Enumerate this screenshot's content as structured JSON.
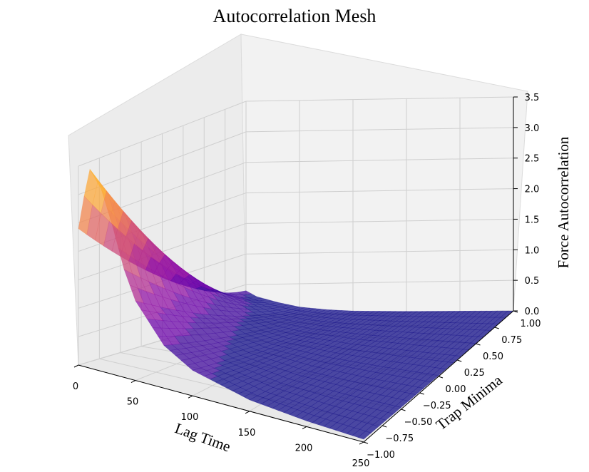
{
  "chart_data": {
    "type": "surface",
    "title": "Autocorrelation Mesh",
    "xlabel": "Lag Time",
    "ylabel": "Trap Minima",
    "zlabel": "Force Autocorrelation",
    "xlim": [
      0,
      250
    ],
    "ylim": [
      -1.0,
      1.0
    ],
    "zlim": [
      0,
      3.5
    ],
    "x_ticks": [
      "0",
      "50",
      "100",
      "150",
      "200",
      "250"
    ],
    "y_ticks": [
      "−1.00",
      "−0.75",
      "−0.50",
      "−0.25",
      "0.00",
      "0.25",
      "0.50",
      "0.75",
      "1.00"
    ],
    "z_ticks": [
      "0.0",
      "0.5",
      "1.0",
      "1.5",
      "2.0",
      "2.5",
      "3.0",
      "3.5"
    ],
    "colormap": "plasma",
    "grid": true,
    "surface_profile": {
      "description_x_values": [
        0,
        5,
        10,
        20,
        30,
        40,
        50,
        75,
        100,
        150,
        200,
        250
      ],
      "peak_row_y": -1.0,
      "peak_row_z": [
        2.4,
        3.0,
        3.5,
        3.2,
        2.6,
        1.9,
        1.4,
        0.75,
        0.45,
        0.2,
        0.1,
        0.05
      ],
      "far_row_y": 1.0,
      "far_row_z": [
        0.4,
        0.35,
        0.3,
        0.25,
        0.2,
        0.16,
        0.12,
        0.07,
        0.04,
        0.02,
        0.01,
        0.0
      ]
    }
  }
}
